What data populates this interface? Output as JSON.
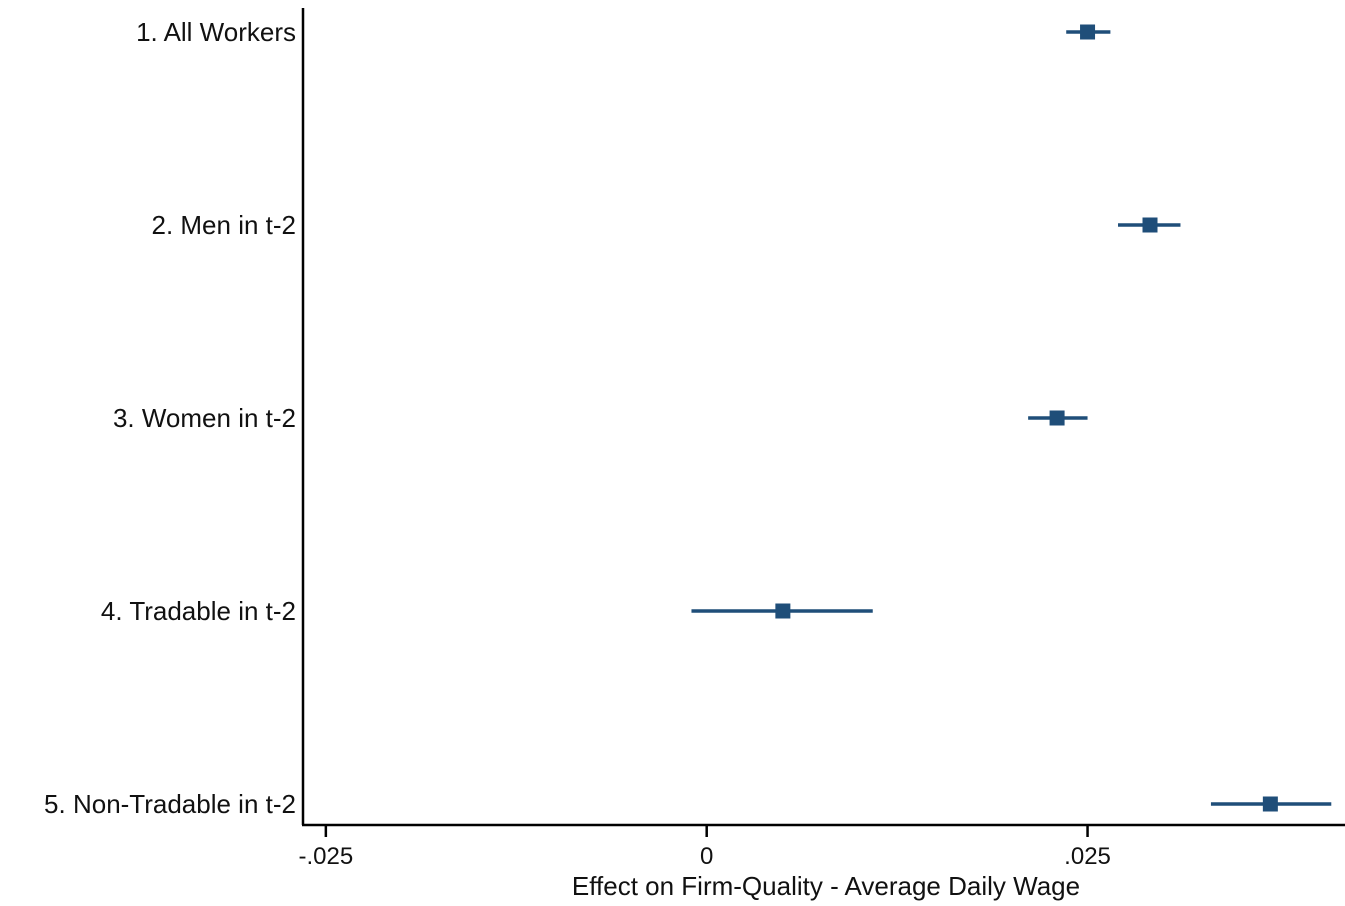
{
  "chart_data": {
    "type": "scatter",
    "subtype": "coefficient-plot",
    "title": "",
    "xlabel": "Effect on Firm-Quality - Average Daily Wage",
    "ylabel": "",
    "xlim": [
      -0.0265,
      0.0419
    ],
    "xticks": [
      {
        "value": -0.025,
        "label": "-.025"
      },
      {
        "value": 0,
        "label": "0"
      },
      {
        "value": 0.025,
        "label": ".025"
      }
    ],
    "grid": false,
    "legend": "none",
    "marker_color": "#1f4e79",
    "categories": [
      "1. All Workers",
      "2. Men in t-2",
      "3. Women in t-2",
      "4. Tradable in t-2",
      "5. Non-Tradable in t-2"
    ],
    "estimates": [
      0.025,
      0.0291,
      0.023,
      0.005,
      0.037
    ],
    "ci_low": [
      0.0236,
      0.027,
      0.0211,
      -0.001,
      0.0331
    ],
    "ci_high": [
      0.0265,
      0.0311,
      0.025,
      0.0109,
      0.041
    ]
  }
}
